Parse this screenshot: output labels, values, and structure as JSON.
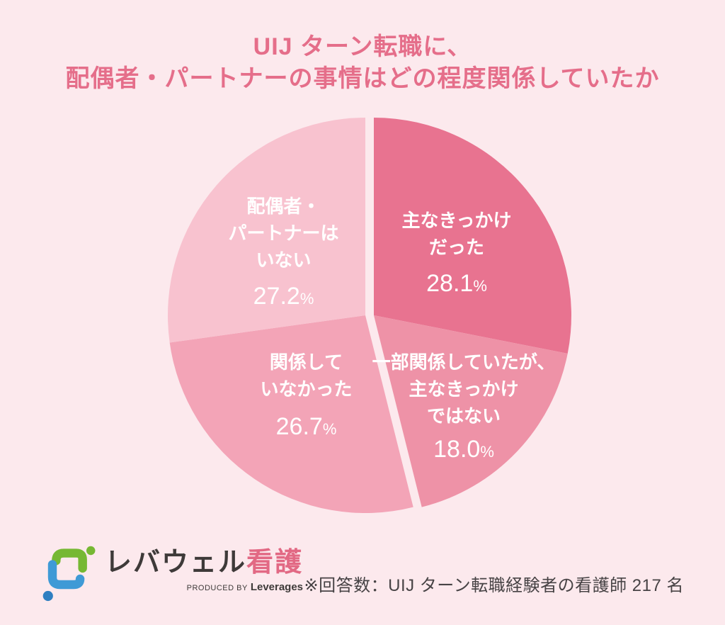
{
  "title": {
    "line1": "UIJ ターン転職に、",
    "line2": "配偶者・パートナーの事情はどの程度関係していたか"
  },
  "chart_data": {
    "type": "pie",
    "title": "UIJ ターン転職に、配偶者・パートナーの事情はどの程度関係していたか",
    "direction": "clockwise",
    "start_angle_deg": 0,
    "total": 100,
    "background": "#fce9ed",
    "label_color": "#ffffff",
    "slices": [
      {
        "label": "主なきっかけだった",
        "lines": [
          "主なきっかけ",
          "だった"
        ],
        "value": 28.1,
        "value_display": "28.1",
        "unit": "%",
        "color": "#e87390",
        "exploded": true
      },
      {
        "label": "一部関係していたが、主なきっかけではない",
        "lines": [
          "一部関係していたが、",
          "主なきっかけ",
          "ではない"
        ],
        "value": 18.0,
        "value_display": "18.0",
        "unit": "%",
        "color": "#ee92a7",
        "exploded": true
      },
      {
        "label": "関係していなかった",
        "lines": [
          "関係して",
          "いなかった"
        ],
        "value": 26.7,
        "value_display": "26.7",
        "unit": "%",
        "color": "#f3a4b7",
        "exploded": false
      },
      {
        "label": "配偶者・パートナーはいない",
        "lines": [
          "配偶者・",
          "パートナーは",
          "いない"
        ],
        "value": 27.2,
        "value_display": "27.2",
        "unit": "%",
        "color": "#f8c2cf",
        "exploded": false
      }
    ]
  },
  "footer": {
    "note": "※回答数：UIJ ターン転職経験者の看護師 217 名",
    "logo": {
      "brand_dark": "レバウェル",
      "brand_pink": "看護",
      "produced_by": "PRODUCED BY",
      "company": "Leverages"
    }
  },
  "colors": {
    "background": "#fce9ed",
    "title_text": "#e56e8a",
    "note_text": "#474345",
    "logo_dark": "#3e3a39",
    "logo_pink": "#e26984",
    "logo_blue": "#3f9ad6",
    "logo_blue_dark": "#2f7fc1",
    "logo_green": "#76b833"
  }
}
